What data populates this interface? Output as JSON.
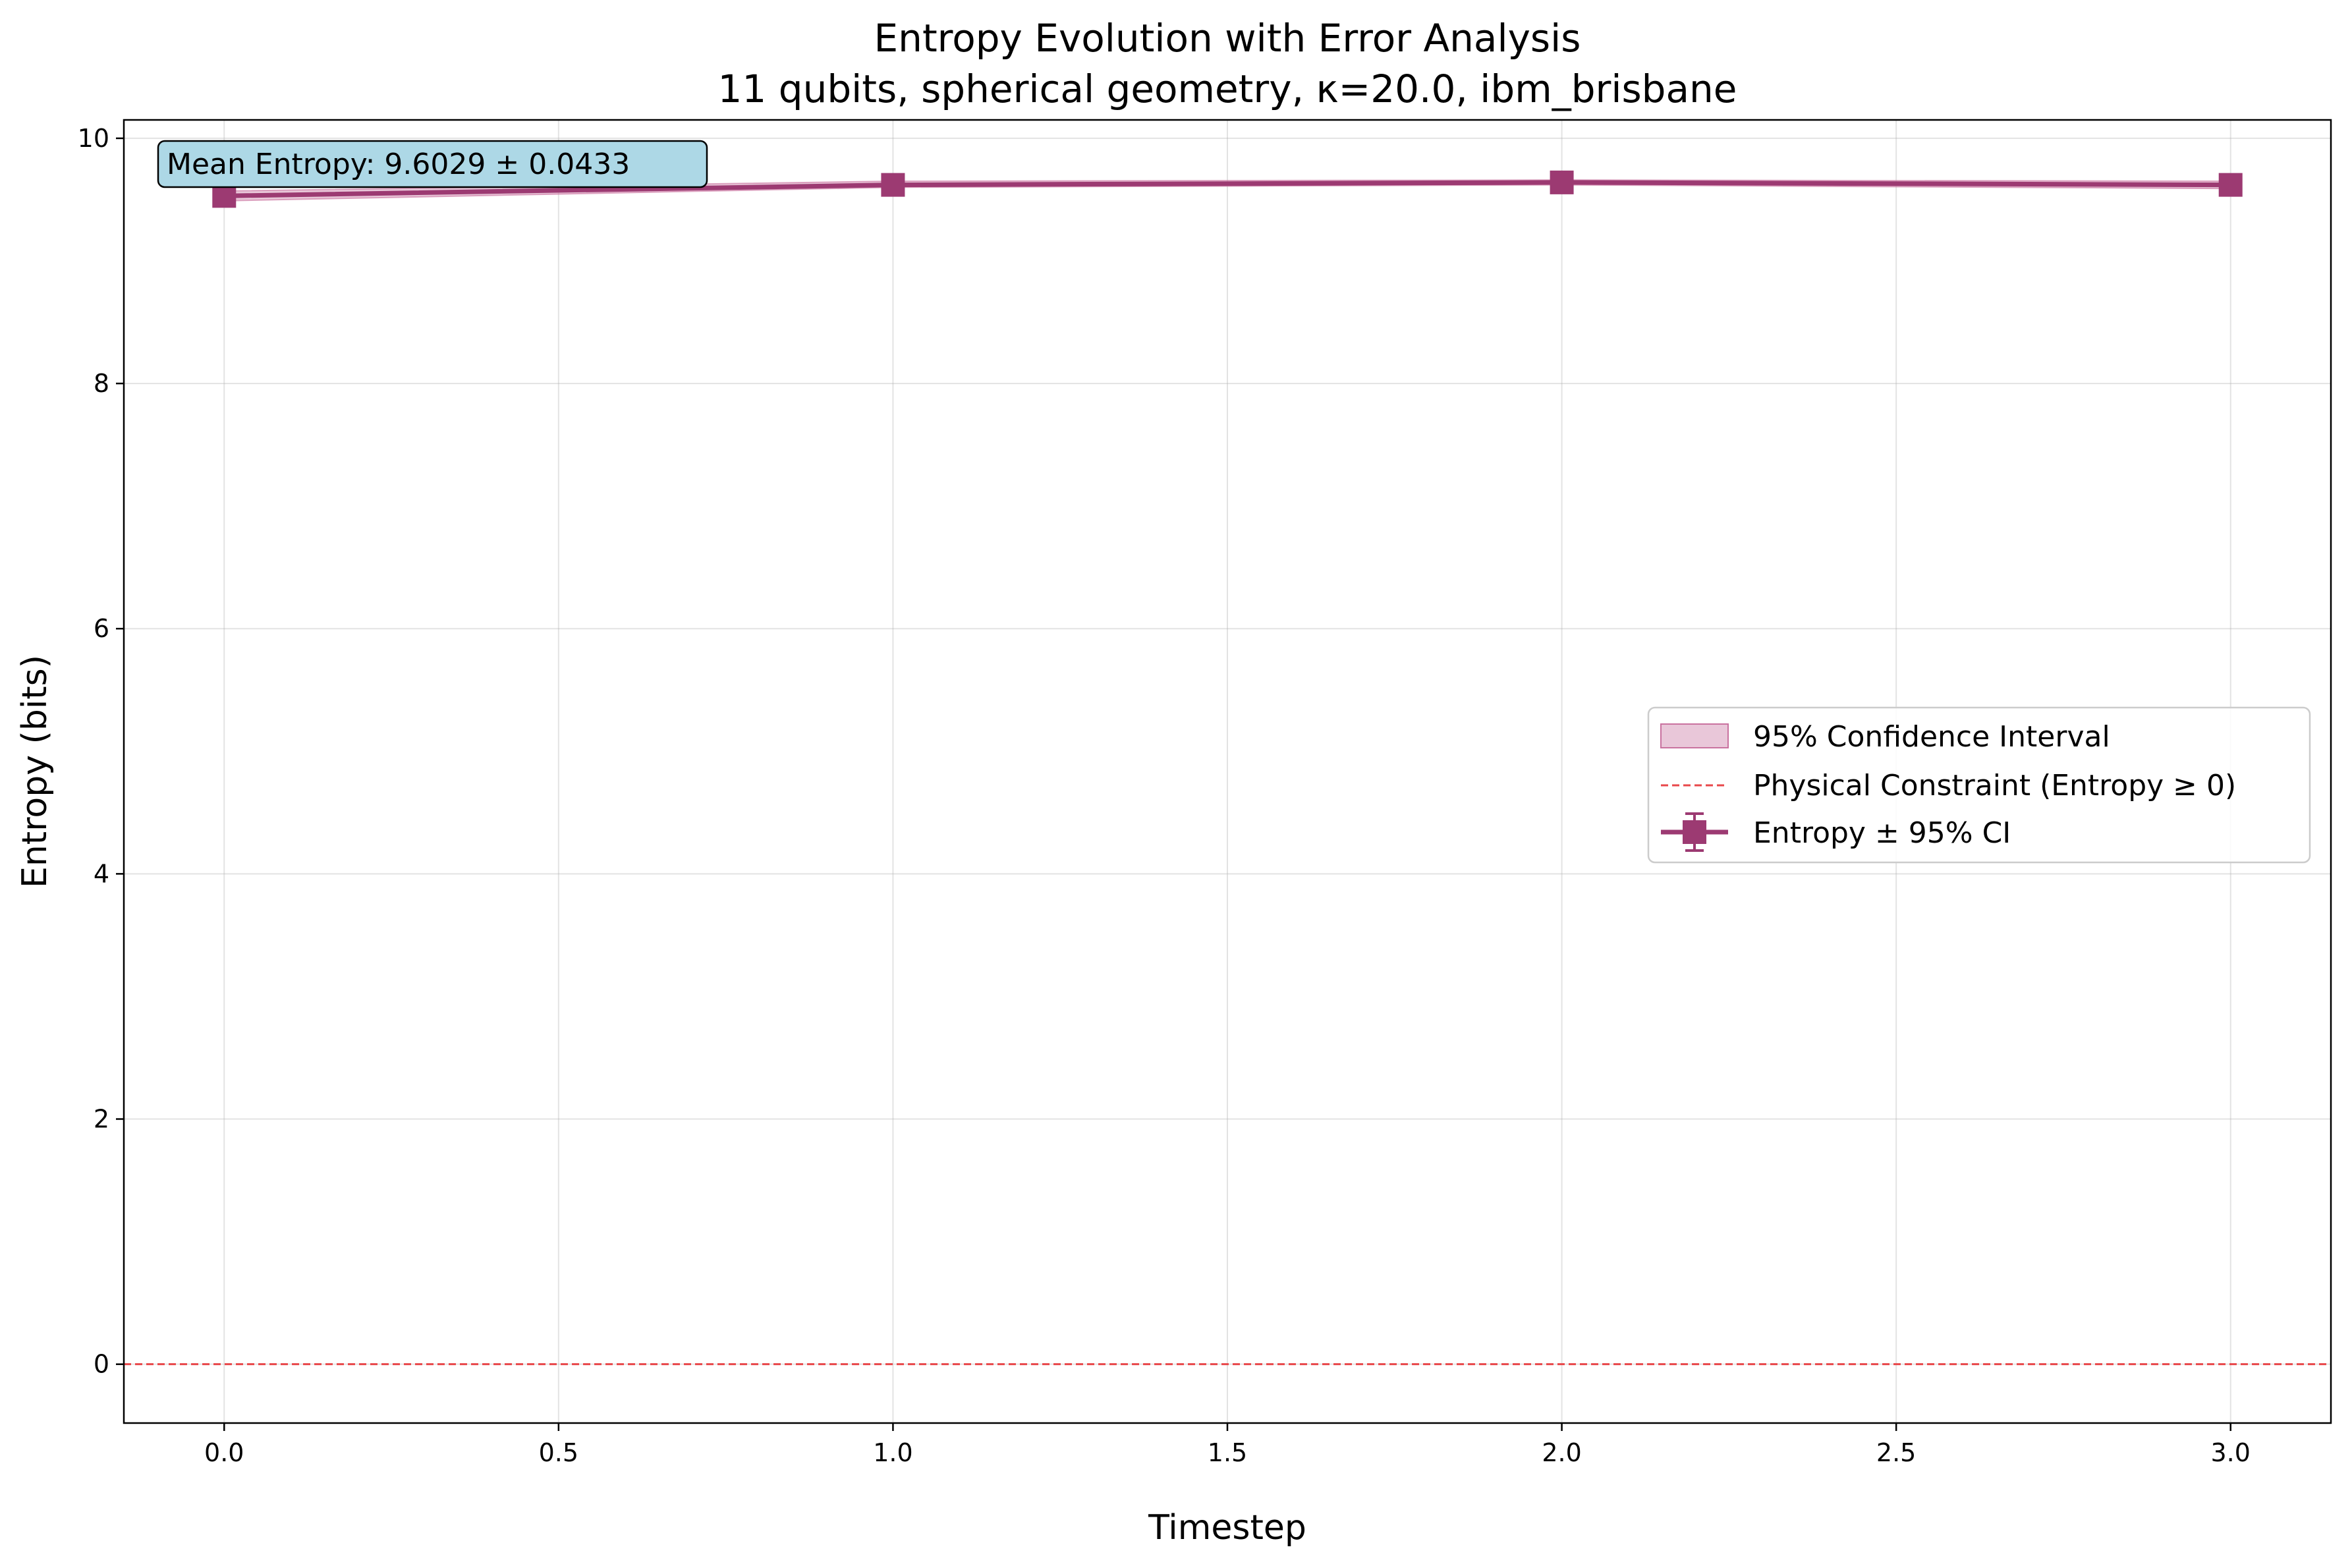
{
  "chart_data": {
    "type": "line",
    "title": "Entropy Evolution with Error Analysis",
    "subtitle": "11 qubits, spherical geometry, κ=20.0, ibm_brisbane",
    "xlabel": "Timestep",
    "ylabel": "Entropy (bits)",
    "xlim": [
      -0.15,
      3.15
    ],
    "ylim": [
      -0.48,
      10.15
    ],
    "x_ticks": [
      0.0,
      0.5,
      1.0,
      1.5,
      2.0,
      2.5,
      3.0
    ],
    "x_tick_labels": [
      "0.0",
      "0.5",
      "1.0",
      "1.5",
      "2.0",
      "2.5",
      "3.0"
    ],
    "y_ticks": [
      0,
      2,
      4,
      6,
      8,
      10
    ],
    "y_tick_labels": [
      "0",
      "2",
      "4",
      "6",
      "8",
      "10"
    ],
    "grid": true,
    "series": [
      {
        "name": "Entropy ± 95% CI",
        "x": [
          0,
          1,
          2,
          3
        ],
        "values": [
          9.53,
          9.62,
          9.64,
          9.62
        ],
        "ci_lower": [
          9.49,
          9.6,
          9.62,
          9.59
        ],
        "ci_upper": [
          9.57,
          9.65,
          9.66,
          9.65
        ],
        "color": "#9c3a72",
        "marker": "square"
      }
    ],
    "confidence_band": {
      "name": "95% Confidence Interval",
      "color": "#c9729f",
      "opacity": 0.4
    },
    "reference_line": {
      "name": "Physical Constraint (Entropy ≥ 0)",
      "y": 0,
      "color": "#e8474a",
      "style": "dashed"
    },
    "annotation": {
      "text": "Mean Entropy: 9.6029 ± 0.0433",
      "background": "#add8e6"
    },
    "legend_position": "center-right"
  }
}
